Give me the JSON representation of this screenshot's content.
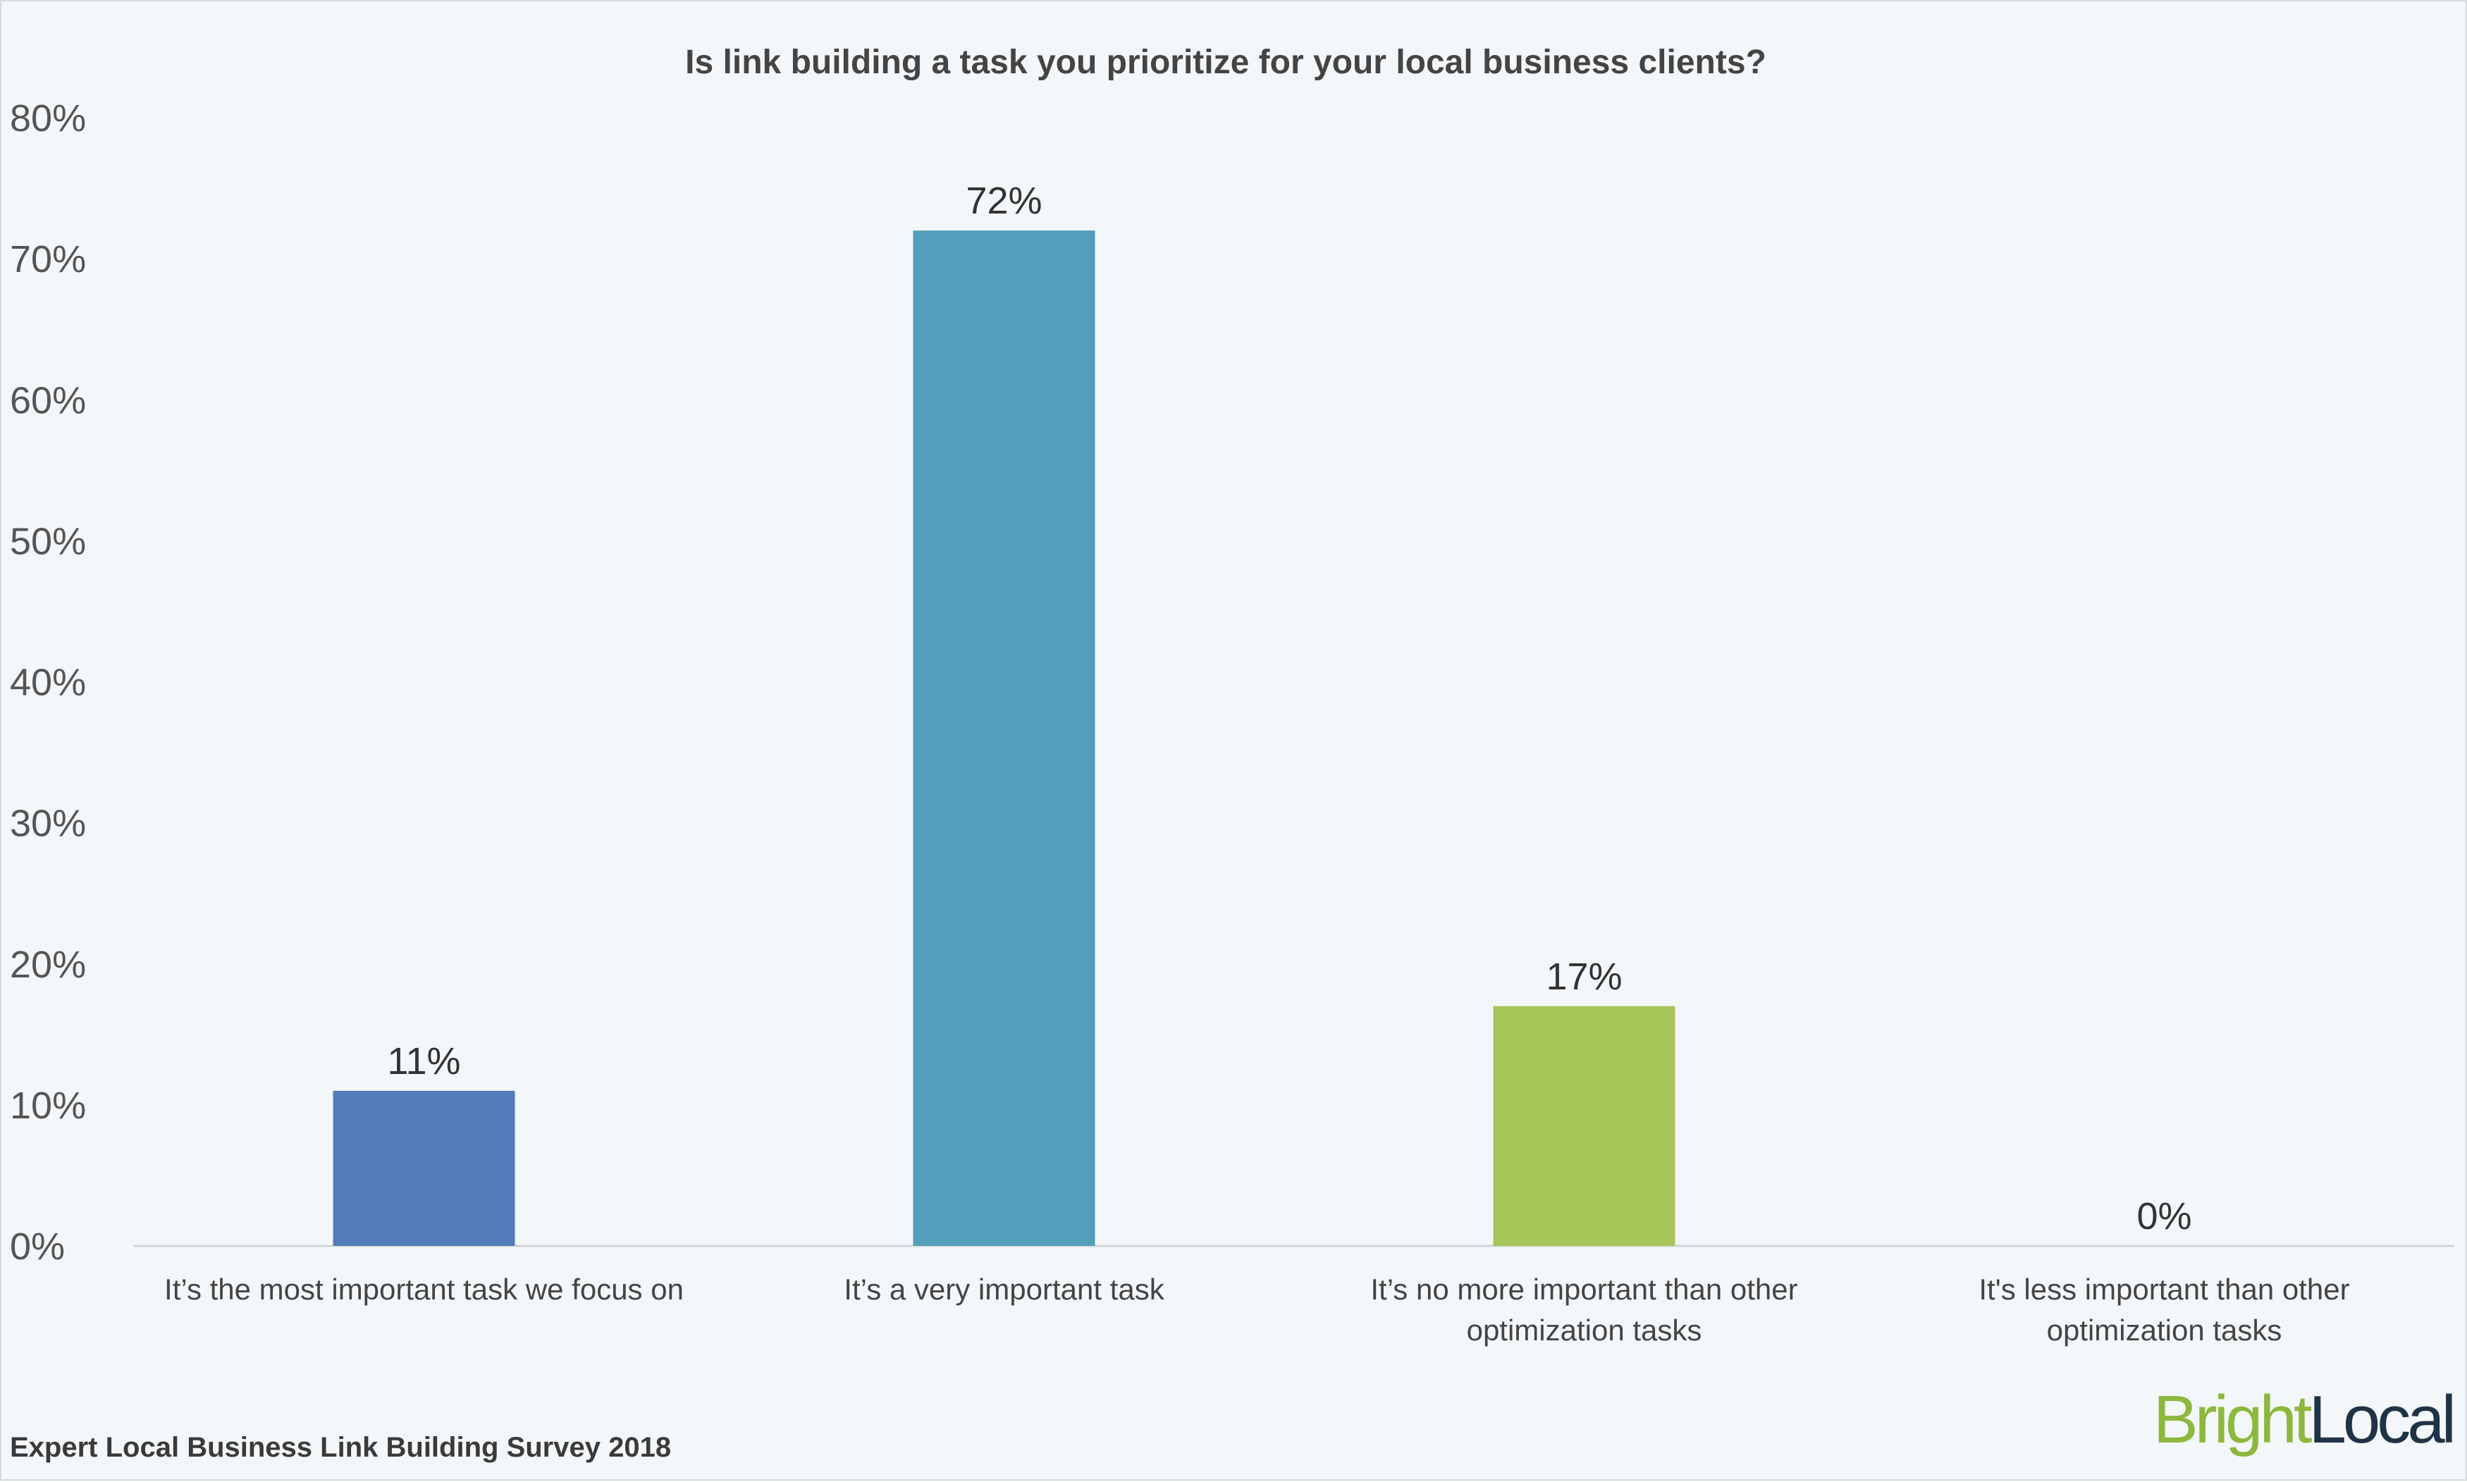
{
  "chart_data": {
    "type": "bar",
    "title": "Is link building a task you prioritize for your local business clients?",
    "categories": [
      [
        "It’s the most important task we focus on"
      ],
      [
        "It’s a very important task"
      ],
      [
        "It’s no more important than other",
        "optimization tasks"
      ],
      [
        "It's less important than other",
        "optimization tasks"
      ]
    ],
    "values": [
      11,
      72,
      17,
      0
    ],
    "value_labels": [
      "11%",
      "72%",
      "17%",
      "0%"
    ],
    "colors": [
      "#537bb9",
      "#549fbb",
      "#a5c558",
      "#e6a52f"
    ],
    "y_ticks": [
      "0%",
      "10%",
      "20%",
      "30%",
      "40%",
      "50%",
      "60%",
      "70%",
      "80%"
    ],
    "ylim": [
      0,
      80
    ],
    "grid": false,
    "legend": "none"
  },
  "footer": {
    "source": "Expert Local Business Link Building Survey 2018",
    "brand_part1": "Bright",
    "brand_part2": "Local"
  }
}
